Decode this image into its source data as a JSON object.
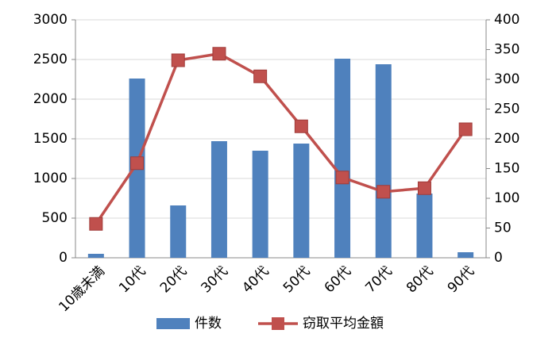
{
  "chart_data": {
    "type": "bar",
    "categories": [
      "10歳未満",
      "10代",
      "20代",
      "30代",
      "40代",
      "50代",
      "60代",
      "70代",
      "80代",
      "90代"
    ],
    "series": [
      {
        "name": "件数",
        "color": "#4f81bd",
        "values": [
          50,
          2260,
          660,
          1470,
          1350,
          1440,
          2510,
          2440,
          810,
          70
        ]
      },
      {
        "name": "窃取平均金額",
        "color": "#c0504d",
        "type": "line",
        "axis": "y2",
        "values": [
          57,
          159,
          332,
          343,
          305,
          221,
          135,
          111,
          117,
          216
        ]
      }
    ],
    "ylim": [
      0,
      3000
    ],
    "yticks": [
      0,
      500,
      1000,
      1500,
      2000,
      2500,
      3000
    ],
    "y2lim": [
      0,
      400
    ],
    "y2ticks": [
      0,
      50,
      100,
      150,
      200,
      250,
      300,
      350,
      400
    ],
    "grid": true,
    "legend": "bottom"
  }
}
